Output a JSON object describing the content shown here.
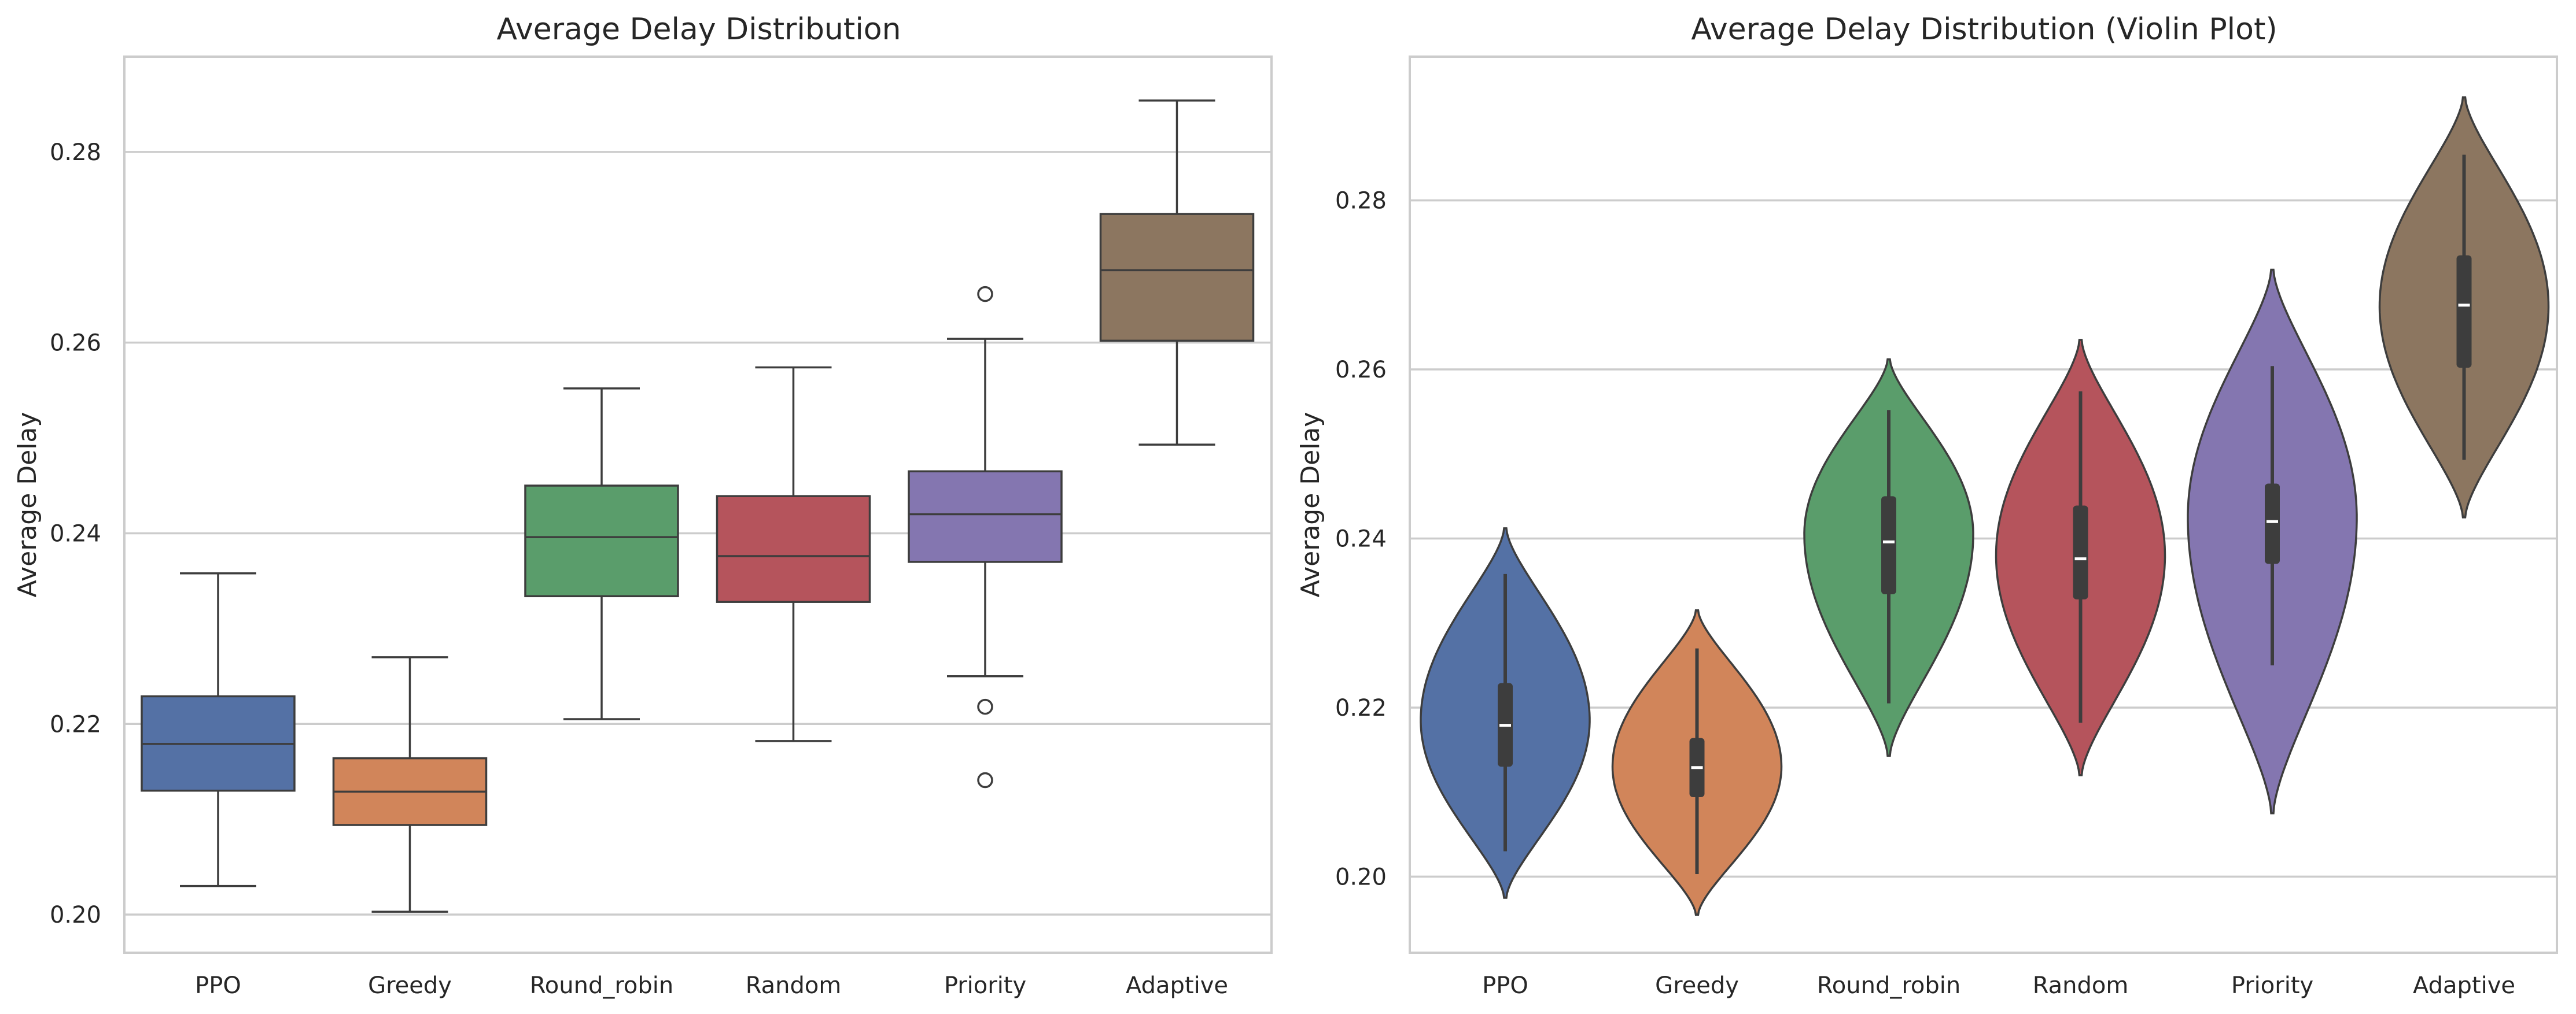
{
  "colors": {
    "PPO": "#5471a5",
    "Greedy": "#d1855a",
    "Round_robin": "#5a9d6b",
    "Random": "#b5545c",
    "Priority": "#8476b0",
    "Adaptive": "#8c7660",
    "line": "#3d3d3d",
    "grid": "#cccccc"
  },
  "chart_data": [
    {
      "type": "box",
      "title": "Average Delay Distribution",
      "xlabel": "",
      "ylabel": "Average Delay",
      "ylim": [
        0.196,
        0.29
      ],
      "yticks": [
        0.2,
        0.22,
        0.24,
        0.26,
        0.28
      ],
      "ytick_labels": [
        "0.20",
        "0.22",
        "0.24",
        "0.26",
        "0.28"
      ],
      "grid": true,
      "categories": [
        "PPO",
        "Greedy",
        "Round_robin",
        "Random",
        "Priority",
        "Adaptive"
      ],
      "boxes": [
        {
          "whislo": 0.203,
          "q1": 0.213,
          "med": 0.2179,
          "q3": 0.2229,
          "whishi": 0.2358,
          "fliers": []
        },
        {
          "whislo": 0.2003,
          "q1": 0.2094,
          "med": 0.2129,
          "q3": 0.2164,
          "whishi": 0.227,
          "fliers": []
        },
        {
          "whislo": 0.2205,
          "q1": 0.2334,
          "med": 0.2396,
          "q3": 0.245,
          "whishi": 0.2552,
          "fliers": []
        },
        {
          "whislo": 0.2182,
          "q1": 0.2328,
          "med": 0.2376,
          "q3": 0.2439,
          "whishi": 0.2574,
          "fliers": []
        },
        {
          "whislo": 0.225,
          "q1": 0.237,
          "med": 0.242,
          "q3": 0.2465,
          "whishi": 0.2604,
          "fliers": [
            0.2651,
            0.2218,
            0.2141
          ]
        },
        {
          "whislo": 0.2493,
          "q1": 0.2602,
          "med": 0.2676,
          "q3": 0.2735,
          "whishi": 0.2854,
          "fliers": []
        }
      ]
    },
    {
      "type": "violin",
      "title": "Average Delay Distribution (Violin Plot)",
      "xlabel": "",
      "ylabel": "Average Delay",
      "ylim": [
        0.191,
        0.297
      ],
      "yticks": [
        0.2,
        0.22,
        0.24,
        0.26,
        0.28
      ],
      "ytick_labels": [
        "0.20",
        "0.22",
        "0.24",
        "0.26",
        "0.28"
      ],
      "grid": true,
      "categories": [
        "PPO",
        "Greedy",
        "Round_robin",
        "Random",
        "Priority",
        "Adaptive"
      ],
      "violins": [
        {
          "ymin": 0.1975,
          "ymax": 0.2412,
          "mode": 0.2185,
          "whislo": 0.203,
          "q1": 0.213,
          "med": 0.2179,
          "q3": 0.2229,
          "whishi": 0.2358
        },
        {
          "ymin": 0.1955,
          "ymax": 0.2315,
          "mode": 0.213,
          "whislo": 0.2003,
          "q1": 0.2094,
          "med": 0.2129,
          "q3": 0.2164,
          "whishi": 0.227
        },
        {
          "ymin": 0.2143,
          "ymax": 0.2612,
          "mode": 0.2405,
          "whislo": 0.2205,
          "q1": 0.2334,
          "med": 0.2396,
          "q3": 0.245,
          "whishi": 0.2552
        },
        {
          "ymin": 0.212,
          "ymax": 0.2635,
          "mode": 0.238,
          "whislo": 0.2182,
          "q1": 0.2328,
          "med": 0.2376,
          "q3": 0.2439,
          "whishi": 0.2574
        },
        {
          "ymin": 0.2075,
          "ymax": 0.2718,
          "mode": 0.2425,
          "whislo": 0.225,
          "q1": 0.237,
          "med": 0.242,
          "q3": 0.2465,
          "whishi": 0.2604
        },
        {
          "ymin": 0.2425,
          "ymax": 0.2922,
          "mode": 0.2675,
          "whislo": 0.2493,
          "q1": 0.2602,
          "med": 0.2676,
          "q3": 0.2735,
          "whishi": 0.2854
        }
      ]
    }
  ]
}
